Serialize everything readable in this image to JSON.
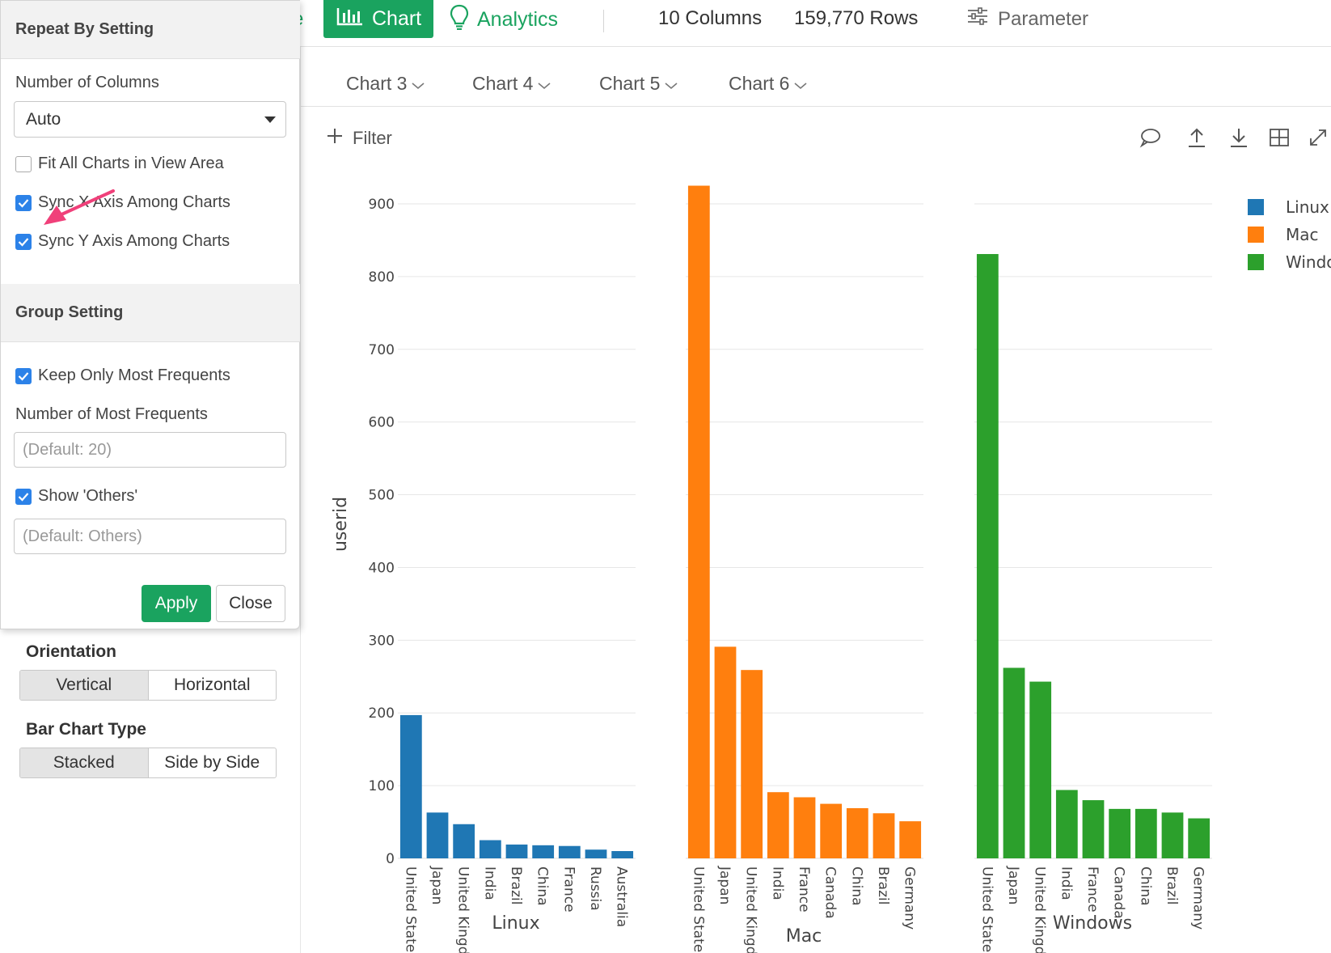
{
  "topbar": {
    "cut_label": "e",
    "chart_label": "Chart",
    "analytics_label": "Analytics",
    "columns": "10 Columns",
    "rows": "159,770 Rows",
    "parameter_label": "Parameter",
    "accent_color": "#1aa35f"
  },
  "tabs": [
    "Chart 3",
    "Chart 4",
    "Chart 5",
    "Chart 6"
  ],
  "filter_label": "Filter",
  "toolbar_icons": [
    "comment-icon",
    "upload-icon",
    "download-icon",
    "table-icon",
    "expand-icon"
  ],
  "left_panel": {
    "orientation_title": "Orientation",
    "orientation_options": [
      "Vertical",
      "Horizontal"
    ],
    "orientation_selected": "Vertical",
    "bar_type_title": "Bar Chart Type",
    "bar_type_options": [
      "Stacked",
      "Side by Side"
    ],
    "bar_type_selected": "Stacked"
  },
  "popup": {
    "repeat_title": "Repeat By Setting",
    "num_columns_label": "Number of Columns",
    "num_columns_value": "Auto",
    "fit_all_label": "Fit All Charts in View Area",
    "fit_all_checked": false,
    "sync_x_label": "Sync X Axis Among Charts",
    "sync_x_checked": true,
    "sync_y_label": "Sync Y Axis Among Charts",
    "sync_y_checked": true,
    "group_title": "Group Setting",
    "keep_frequent_label": "Keep Only Most Frequents",
    "keep_frequent_checked": true,
    "num_frequent_label": "Number of Most Frequents",
    "num_frequent_placeholder": "(Default: 20)",
    "show_others_label": "Show 'Others'",
    "show_others_checked": true,
    "others_placeholder": "(Default: Others)",
    "apply_label": "Apply",
    "close_label": "Close"
  },
  "chart_data": {
    "type": "bar",
    "ylabel": "userid",
    "ylim": [
      0,
      930
    ],
    "yticks": [
      0,
      100,
      200,
      300,
      400,
      500,
      600,
      700,
      800,
      900
    ],
    "grid": true,
    "legend_position": "top-right",
    "facets": [
      {
        "name": "Linux",
        "color": "#1f77b4",
        "categories": [
          "United States",
          "Japan",
          "United Kingdom",
          "India",
          "Brazil",
          "China",
          "France",
          "Russia",
          "Australia"
        ],
        "values": [
          197,
          63,
          47,
          25,
          19,
          18,
          17,
          12,
          10
        ]
      },
      {
        "name": "Mac",
        "color": "#ff7f0e",
        "categories": [
          "United States",
          "Japan",
          "United Kingdom",
          "India",
          "France",
          "Canada",
          "China",
          "Brazil",
          "Germany"
        ],
        "values": [
          925,
          291,
          259,
          91,
          84,
          75,
          69,
          62,
          51
        ]
      },
      {
        "name": "Windows",
        "color": "#2ca02c",
        "categories": [
          "United States",
          "Japan",
          "United Kingdom",
          "India",
          "France",
          "Canada",
          "China",
          "Brazil",
          "Germany"
        ],
        "values": [
          831,
          262,
          243,
          94,
          80,
          68,
          68,
          63,
          55
        ]
      }
    ],
    "legend": [
      {
        "name": "Linux",
        "color": "#1f77b4"
      },
      {
        "name": "Mac",
        "color": "#ff7f0e"
      },
      {
        "name": "Windows",
        "color": "#2ca02c"
      }
    ]
  },
  "annotation_arrow_color": "#f0407a"
}
